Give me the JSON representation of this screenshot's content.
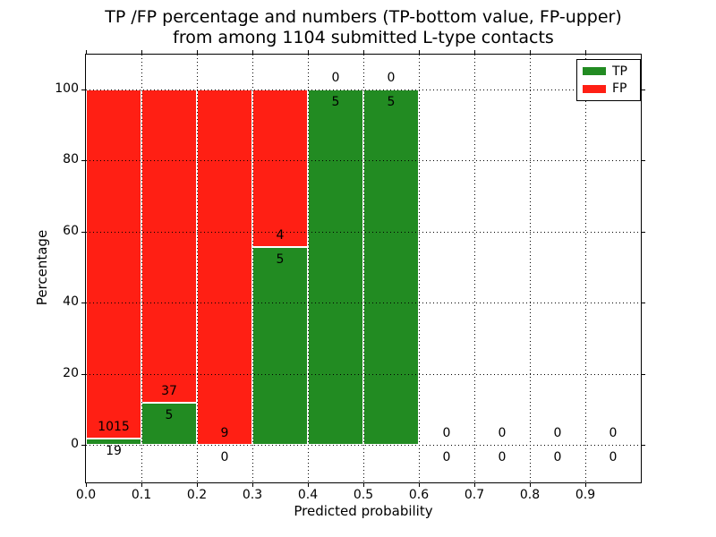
{
  "figure": {
    "title_line1": "TP /FP percentage and numbers (TP-bottom value, FP-upper)",
    "title_line2": "from among 1104 submitted L-type contacts"
  },
  "chart_data": {
    "type": "bar",
    "stacked": true,
    "title": "TP /FP percentage and numbers (TP-bottom value, FP-upper)\nfrom among 1104 submitted L-type contacts",
    "xlabel": "Predicted probability",
    "ylabel": "Percentage",
    "total_submitted": 1104,
    "contact_type": "L-type",
    "bin_width": 0.1,
    "categories": [
      "0.0–0.1",
      "0.1–0.2",
      "0.2–0.3",
      "0.3–0.4",
      "0.4–0.5",
      "0.5–0.6",
      "0.6–0.7",
      "0.7–0.8",
      "0.8–0.9",
      "0.9–1.0"
    ],
    "series": [
      {
        "name": "TP",
        "color": "#228b22",
        "counts": [
          19,
          5,
          0,
          5,
          5,
          5,
          0,
          0,
          0,
          0
        ]
      },
      {
        "name": "FP",
        "color": "#ff1f14",
        "counts": [
          1015,
          37,
          9,
          4,
          0,
          0,
          0,
          0,
          0,
          0
        ]
      }
    ],
    "percentages": {
      "TP": [
        1.8,
        11.9,
        0.0,
        55.6,
        100.0,
        100.0,
        0.0,
        0.0,
        0.0,
        0.0
      ],
      "FP": [
        98.2,
        88.1,
        100.0,
        44.4,
        0.0,
        0.0,
        0.0,
        0.0,
        0.0,
        0.0
      ]
    },
    "x_ticks": [
      "0.0",
      "0.1",
      "0.2",
      "0.3",
      "0.4",
      "0.5",
      "0.6",
      "0.7",
      "0.8",
      "0.9"
    ],
    "y_ticks": [
      "0",
      "20",
      "40",
      "60",
      "80",
      "100"
    ],
    "xlim": [
      0.0,
      1.0
    ],
    "ylim": [
      -10.5,
      109.5
    ],
    "grid": {
      "style": "dotted",
      "color": "#000000",
      "on_top": true
    },
    "bar_edge_color": "#ffffff",
    "background": "#ffffff",
    "legend": {
      "position": "upper right",
      "entries": [
        {
          "label": "TP",
          "color": "#228b22"
        },
        {
          "label": "FP",
          "color": "#ff1f14"
        }
      ]
    }
  }
}
